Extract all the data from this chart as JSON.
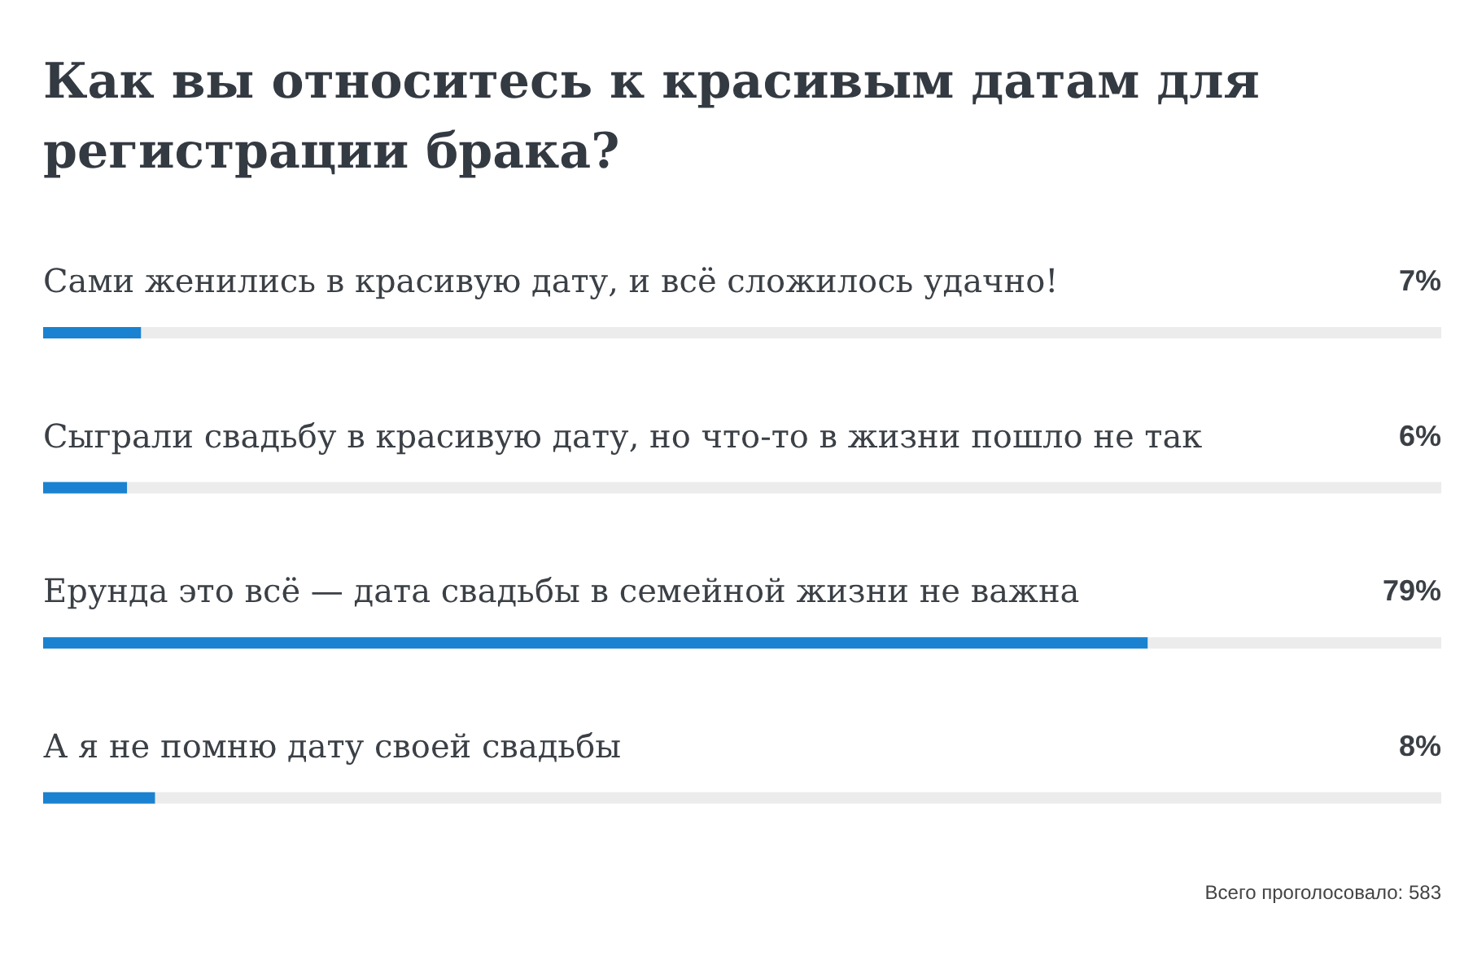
{
  "chart_data": {
    "type": "bar",
    "orientation": "horizontal",
    "title": "Как вы относитесь к красивым датам для регистрации брака?",
    "categories": [
      "Сами женились в красивую дату, и всё сложилось удачно!",
      "Сыграли свадьбу в красивую дату, но что-то в жизни пошло не так",
      "Ерунда это всё — дата свадьбы в семейной жизни не важна",
      "А я не помню дату своей свадьбы"
    ],
    "values": [
      7,
      6,
      79,
      8
    ],
    "value_labels": [
      "7%",
      "6%",
      "79%",
      "8%"
    ],
    "color": "#1a82d0",
    "xlim": [
      0,
      100
    ],
    "tick_labels": false,
    "annotations": [
      "Всего проголосовало: 583"
    ]
  }
}
